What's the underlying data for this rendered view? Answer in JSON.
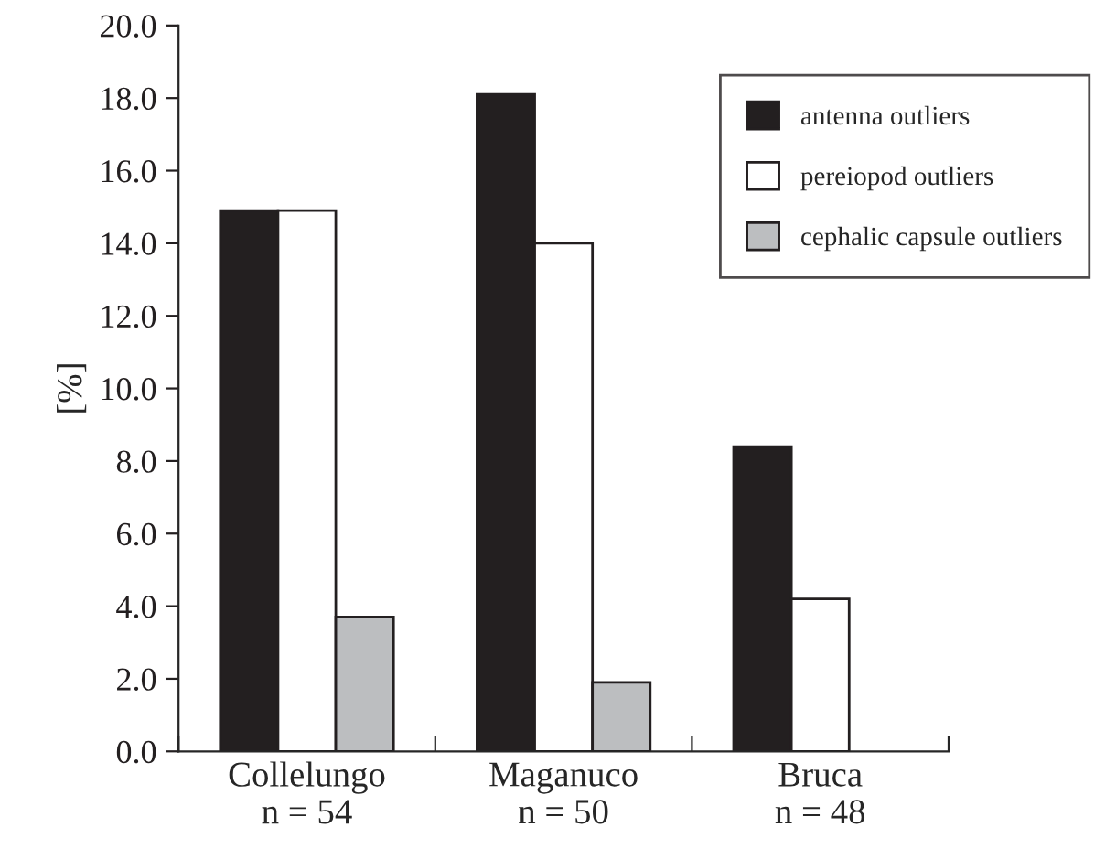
{
  "chart_data": {
    "type": "bar",
    "ylabel": "[%]",
    "categories": [
      "Collelungo\nn = 54",
      "Maganuco\nn = 50",
      "Bruca\nn = 48"
    ],
    "series": [
      {
        "name": "antenna outliers",
        "color": "#231f20",
        "values": [
          14.9,
          18.1,
          8.4
        ]
      },
      {
        "name": "pereiopod outliers",
        "color": "#ffffff",
        "values": [
          14.9,
          14.0,
          4.2
        ]
      },
      {
        "name": "cephalic capsule outliers",
        "color": "#bcbec0",
        "values": [
          3.7,
          1.9,
          null
        ]
      }
    ],
    "ylim": [
      0,
      20
    ],
    "yticks": [
      {
        "value": 0,
        "label": "0.0"
      },
      {
        "value": 2,
        "label": "2.0"
      },
      {
        "value": 4,
        "label": "4.0"
      },
      {
        "value": 6,
        "label": "6.0"
      },
      {
        "value": 8,
        "label": "8.0"
      },
      {
        "value": 10,
        "label": "10.0"
      },
      {
        "value": 12,
        "label": "12.0"
      },
      {
        "value": 14,
        "label": "14.0"
      },
      {
        "value": 16,
        "label": "16.0"
      },
      {
        "value": 18,
        "label": "18.0"
      },
      {
        "value": 20,
        "label": "20.0"
      }
    ],
    "grid": false,
    "legend": "top right"
  }
}
